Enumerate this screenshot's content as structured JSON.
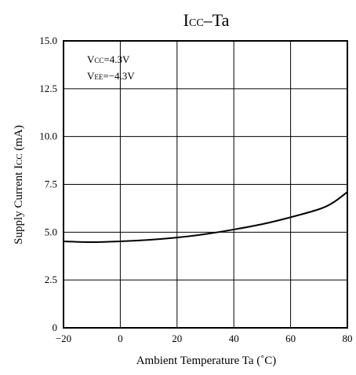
{
  "chart_data": {
    "type": "line",
    "title": {
      "main": "I",
      "sub": "CC",
      "suffix": "–Ta"
    },
    "xlabel": "Ambient Temperature  Ta (˚C)",
    "ylabel": {
      "main": "Supply Current  I",
      "sub": "CC",
      "suffix": " (mA)"
    },
    "xlim": [
      -20,
      80
    ],
    "ylim": [
      0,
      15
    ],
    "x_ticks": [
      -20,
      0,
      20,
      40,
      60,
      80
    ],
    "x_tick_labels": [
      "−20",
      "0",
      "20",
      "40",
      "60",
      "80"
    ],
    "y_ticks": [
      0,
      2.5,
      5,
      7.5,
      10,
      12.5,
      15
    ],
    "y_tick_labels": [
      "0",
      "2.5",
      "5.0",
      "7.5",
      "10.0",
      "12.5",
      "15.0"
    ],
    "grid": true,
    "annotations": [
      {
        "main": "V",
        "sub": "CC",
        "rest": "=4.3V"
      },
      {
        "main": "V",
        "sub": "EE",
        "rest": "=−4.3V"
      }
    ],
    "series": [
      {
        "color": "#000000",
        "x": [
          -20,
          -10,
          0,
          10,
          20,
          30,
          40,
          50,
          60,
          70,
          75,
          80
        ],
        "y": [
          4.52,
          4.48,
          4.52,
          4.6,
          4.72,
          4.9,
          5.14,
          5.42,
          5.78,
          6.2,
          6.55,
          7.1
        ]
      }
    ]
  }
}
